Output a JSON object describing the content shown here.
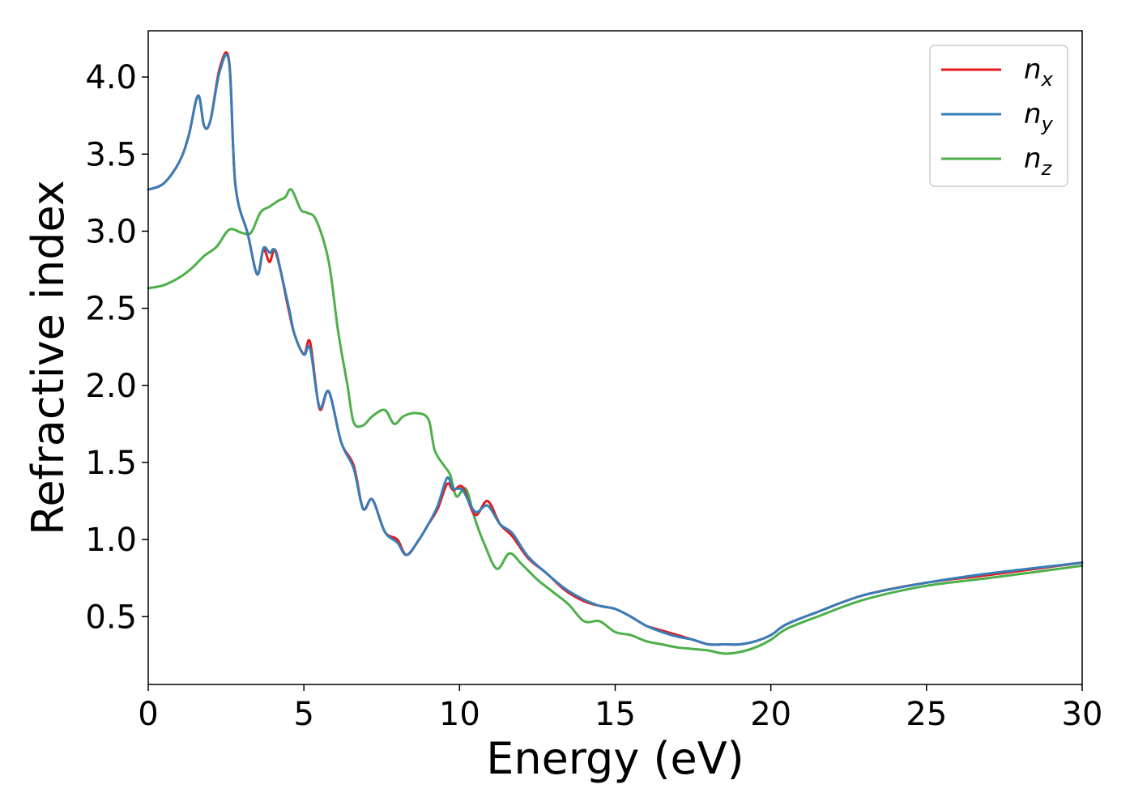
{
  "chart_data": {
    "type": "line",
    "xlabel": "Energy (eV)",
    "ylabel": "Refractive index",
    "xlim": [
      0,
      30
    ],
    "ylim": [
      0.06,
      4.3
    ],
    "xticks": [
      0,
      5,
      10,
      15,
      20,
      25,
      30
    ],
    "xtick_labels": [
      "0",
      "5",
      "10",
      "15",
      "20",
      "25",
      "30"
    ],
    "yticks": [
      0.5,
      1.0,
      1.5,
      2.0,
      2.5,
      3.0,
      3.5,
      4.0
    ],
    "ytick_labels": [
      "0.5",
      "1.0",
      "1.5",
      "2.0",
      "2.5",
      "3.0",
      "3.5",
      "4.0"
    ],
    "grid": false,
    "legend_position": "top-right",
    "series": [
      {
        "name": "n_x",
        "legend_main": "n",
        "legend_sub": "x",
        "color": "#e41a1c",
        "x": [
          0,
          0.5,
          1.0,
          1.3,
          1.6,
          1.8,
          2.0,
          2.3,
          2.6,
          2.8,
          3.2,
          3.5,
          3.7,
          3.9,
          4.1,
          4.5,
          4.7,
          5.0,
          5.2,
          5.5,
          5.8,
          6.2,
          6.6,
          6.9,
          7.2,
          7.6,
          8.0,
          8.3,
          8.7,
          9.0,
          9.3,
          9.6,
          9.8,
          10.1,
          10.5,
          10.9,
          11.3,
          11.7,
          12.2,
          12.8,
          13.4,
          14.0,
          14.5,
          15.0,
          15.5,
          16.0,
          16.5,
          17.0,
          17.5,
          18.0,
          18.5,
          19.0,
          19.5,
          20.0,
          20.5,
          21.5,
          23.0,
          25.0,
          27.0,
          30.0
        ],
        "y": [
          3.27,
          3.31,
          3.45,
          3.62,
          3.88,
          3.68,
          3.72,
          4.06,
          4.1,
          3.3,
          2.98,
          2.72,
          2.88,
          2.8,
          2.87,
          2.5,
          2.33,
          2.2,
          2.28,
          1.85,
          1.96,
          1.63,
          1.48,
          1.2,
          1.26,
          1.05,
          1.0,
          0.9,
          1.0,
          1.1,
          1.2,
          1.36,
          1.32,
          1.34,
          1.16,
          1.25,
          1.1,
          1.02,
          0.88,
          0.78,
          0.67,
          0.6,
          0.57,
          0.55,
          0.5,
          0.44,
          0.41,
          0.38,
          0.35,
          0.32,
          0.32,
          0.32,
          0.34,
          0.38,
          0.45,
          0.53,
          0.64,
          0.72,
          0.77,
          0.85
        ]
      },
      {
        "name": "n_y",
        "legend_main": "n",
        "legend_sub": "y",
        "color": "#377eb8",
        "x": [
          0,
          0.5,
          1.0,
          1.3,
          1.6,
          1.8,
          2.0,
          2.3,
          2.6,
          2.8,
          3.2,
          3.5,
          3.7,
          3.9,
          4.1,
          4.5,
          4.7,
          5.0,
          5.2,
          5.5,
          5.8,
          6.2,
          6.6,
          6.9,
          7.2,
          7.6,
          8.0,
          8.3,
          8.7,
          9.0,
          9.3,
          9.6,
          9.8,
          10.1,
          10.5,
          10.9,
          11.3,
          11.7,
          12.2,
          12.8,
          13.4,
          14.0,
          14.5,
          15.0,
          15.5,
          16.0,
          16.5,
          17.0,
          17.5,
          18.0,
          18.5,
          19.0,
          19.5,
          20.0,
          20.5,
          21.5,
          23.0,
          25.0,
          27.0,
          30.0
        ],
        "y": [
          3.27,
          3.31,
          3.45,
          3.62,
          3.88,
          3.68,
          3.72,
          4.04,
          4.09,
          3.3,
          2.98,
          2.72,
          2.89,
          2.86,
          2.86,
          2.52,
          2.33,
          2.2,
          2.24,
          1.86,
          1.96,
          1.63,
          1.46,
          1.2,
          1.26,
          1.05,
          0.98,
          0.9,
          1.0,
          1.1,
          1.22,
          1.4,
          1.33,
          1.32,
          1.18,
          1.22,
          1.1,
          1.04,
          0.89,
          0.78,
          0.68,
          0.61,
          0.57,
          0.55,
          0.5,
          0.44,
          0.4,
          0.37,
          0.35,
          0.32,
          0.32,
          0.32,
          0.34,
          0.38,
          0.45,
          0.53,
          0.64,
          0.72,
          0.78,
          0.85
        ]
      },
      {
        "name": "n_z",
        "legend_main": "n",
        "legend_sub": "z",
        "color": "#4daf4a",
        "x": [
          0,
          0.5,
          1.0,
          1.4,
          1.8,
          2.2,
          2.6,
          3.0,
          3.3,
          3.6,
          3.9,
          4.2,
          4.4,
          4.6,
          4.9,
          5.1,
          5.4,
          5.8,
          6.1,
          6.4,
          6.6,
          6.9,
          7.2,
          7.6,
          7.9,
          8.2,
          8.6,
          9.0,
          9.2,
          9.5,
          9.7,
          9.9,
          10.2,
          10.5,
          10.8,
          11.2,
          11.6,
          12.0,
          12.5,
          13.0,
          13.5,
          14.0,
          14.5,
          15.0,
          15.5,
          16.0,
          16.5,
          17.0,
          17.5,
          18.0,
          18.5,
          19.0,
          19.5,
          20.0,
          20.5,
          21.5,
          23.0,
          25.0,
          27.0,
          30.0
        ],
        "y": [
          2.63,
          2.65,
          2.7,
          2.76,
          2.84,
          2.9,
          3.01,
          2.99,
          2.99,
          3.12,
          3.16,
          3.2,
          3.22,
          3.27,
          3.14,
          3.12,
          3.07,
          2.8,
          2.35,
          2.0,
          1.76,
          1.74,
          1.8,
          1.84,
          1.75,
          1.8,
          1.82,
          1.78,
          1.58,
          1.48,
          1.42,
          1.28,
          1.33,
          1.13,
          0.97,
          0.81,
          0.91,
          0.84,
          0.74,
          0.66,
          0.58,
          0.47,
          0.47,
          0.4,
          0.38,
          0.34,
          0.32,
          0.3,
          0.29,
          0.28,
          0.26,
          0.27,
          0.3,
          0.35,
          0.42,
          0.5,
          0.61,
          0.7,
          0.75,
          0.83
        ]
      }
    ]
  }
}
